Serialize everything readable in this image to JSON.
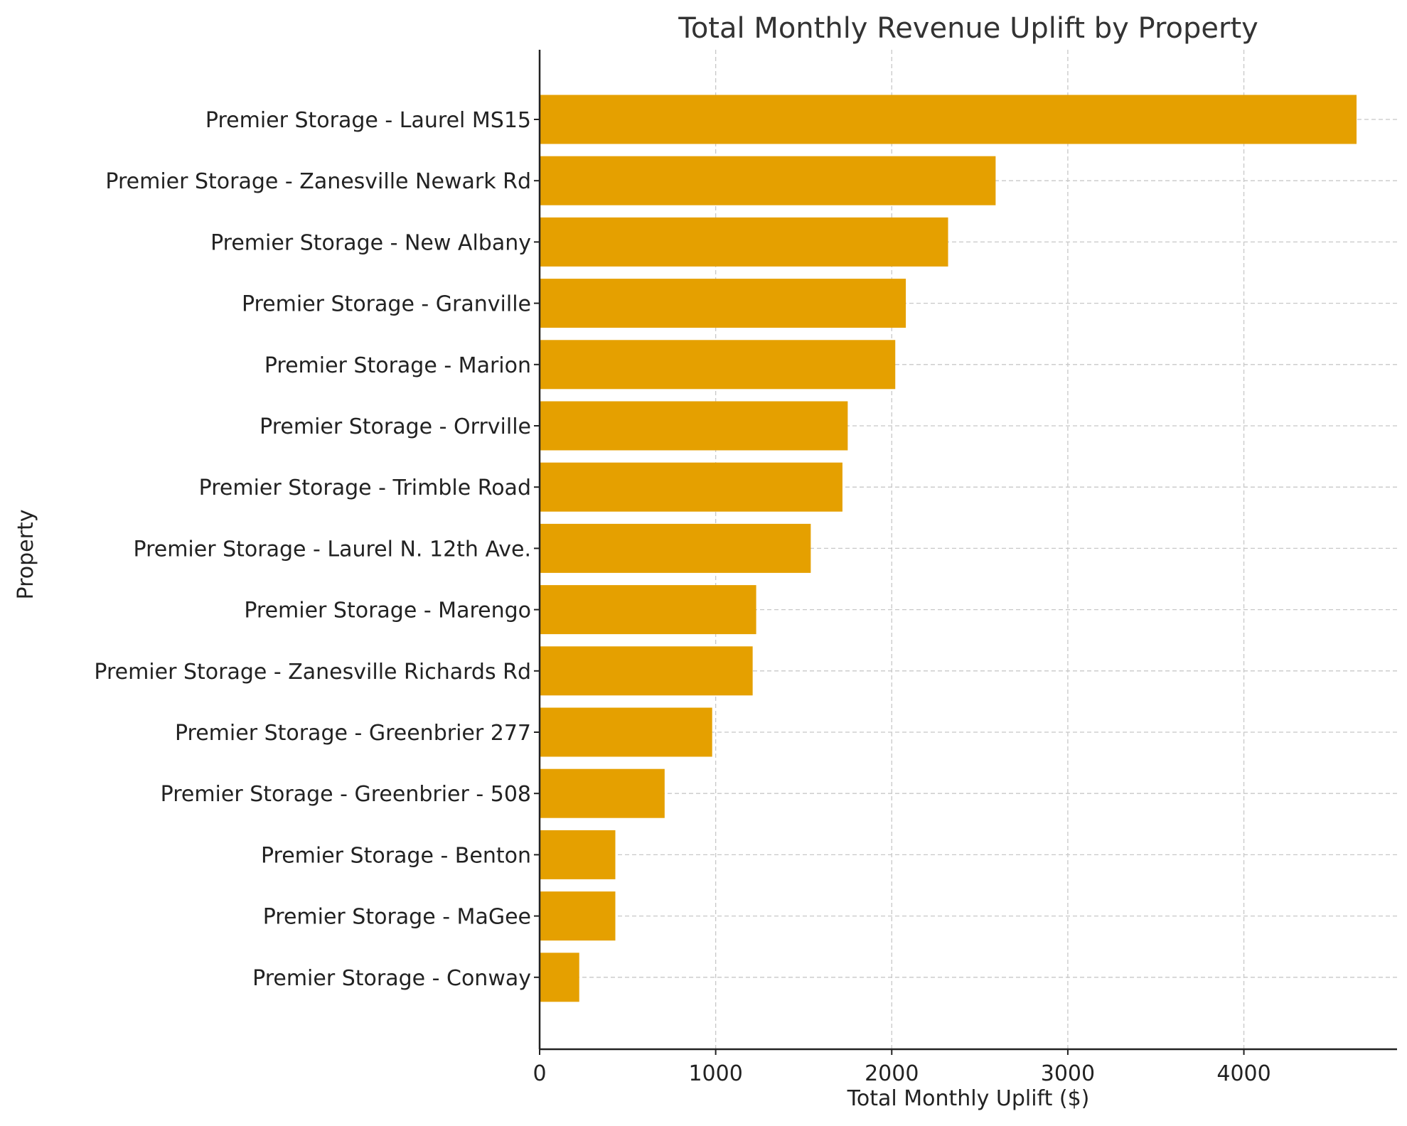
{
  "chart_data": {
    "type": "bar",
    "orientation": "horizontal",
    "title": "Total Monthly Revenue Uplift by Property",
    "xlabel": "Total Monthly Uplift ($)",
    "ylabel": "Property",
    "xlim": [
      0,
      4870
    ],
    "xticks": [
      0,
      1000,
      2000,
      3000,
      4000
    ],
    "grid": true,
    "bar_color": "#E5A000",
    "categories": [
      "Premier Storage - Laurel MS15",
      "Premier Storage - Zanesville Newark Rd",
      "Premier Storage - New Albany",
      "Premier Storage - Granville",
      "Premier Storage - Marion",
      "Premier Storage - Orrville",
      "Premier Storage - Trimble Road",
      "Premier Storage - Laurel N. 12th Ave.",
      "Premier Storage - Marengo",
      "Premier Storage - Zanesville Richards Rd",
      "Premier Storage - Greenbrier 277",
      "Premier Storage - Greenbrier - 508",
      "Premier Storage - Benton",
      "Premier Storage - MaGee",
      "Premier Storage - Conway"
    ],
    "values": [
      4640,
      2590,
      2320,
      2080,
      2020,
      1750,
      1720,
      1540,
      1230,
      1210,
      980,
      710,
      430,
      430,
      225
    ]
  }
}
